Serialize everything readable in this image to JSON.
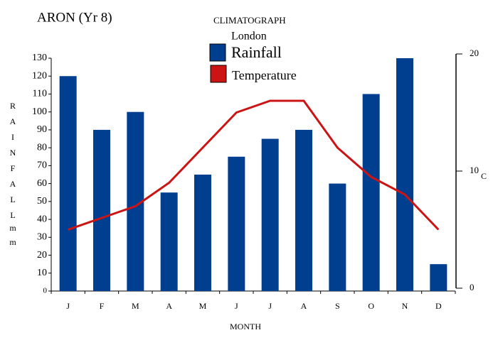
{
  "chart_data": {
    "type": "bar-line",
    "author": "ARON (Yr 8)",
    "title": "CLIMATOGRAPH",
    "subtitle": "London",
    "y_label": [
      "R",
      "A",
      "I",
      "N",
      "F",
      "A",
      "L",
      "L"
    ],
    "y_unit": [
      "m",
      "m"
    ],
    "y2_label": "C",
    "x_label": "MONTH",
    "categories": [
      "J",
      "F",
      "M",
      "A",
      "M",
      "J",
      "J",
      "A",
      "S",
      "O",
      "N",
      "D"
    ],
    "series": [
      {
        "name": "Rainfall",
        "type": "bar",
        "color": "#003f8f",
        "values": [
          120,
          90,
          100,
          55,
          65,
          75,
          85,
          90,
          60,
          110,
          130,
          15
        ]
      },
      {
        "name": "Temperature",
        "type": "line",
        "axis": "y2",
        "color": "#cc1414",
        "values": [
          5,
          6,
          7,
          9,
          12,
          15,
          16,
          16,
          12,
          9.5,
          8,
          5
        ]
      }
    ],
    "ylim": [
      0,
      130
    ],
    "yticks": [
      0,
      10,
      20,
      30,
      40,
      50,
      60,
      70,
      80,
      90,
      100,
      110,
      120,
      130
    ],
    "y2lim": [
      0,
      20
    ],
    "y2ticks": [
      0,
      10,
      20
    ]
  }
}
